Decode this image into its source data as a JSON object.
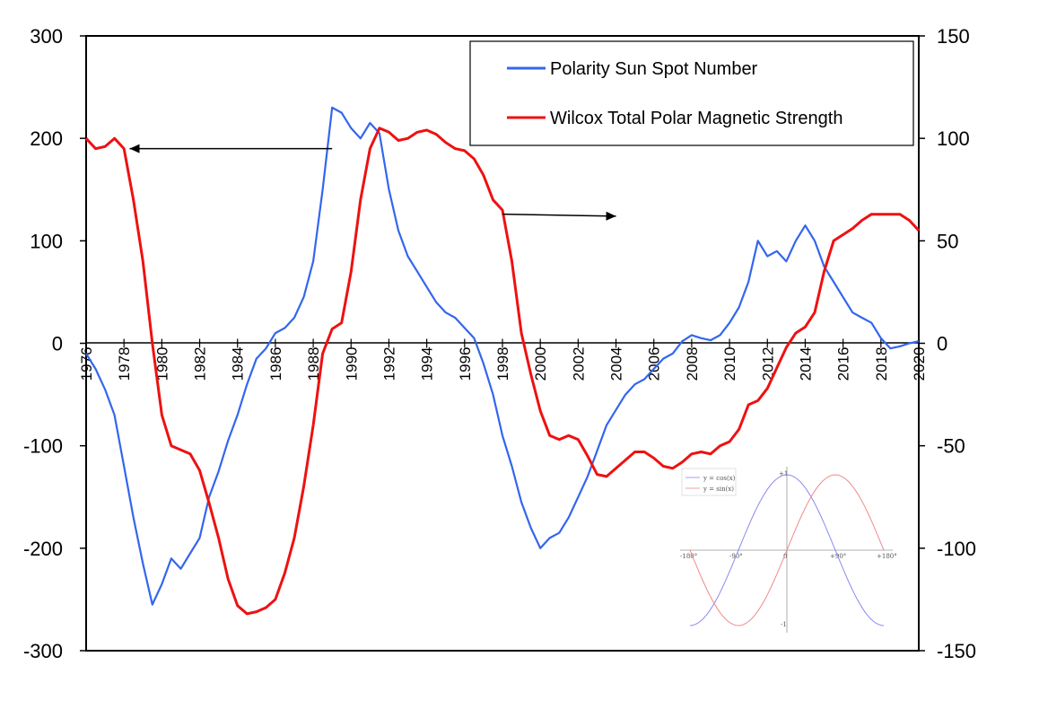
{
  "chart_data": {
    "type": "line",
    "x_range": [
      1976,
      2020
    ],
    "y_left_range": [
      -300,
      300
    ],
    "y_right_range": [
      -150,
      150
    ],
    "y_left_ticks": [
      300,
      200,
      100,
      0,
      -100,
      -200,
      -300
    ],
    "y_right_ticks": [
      150,
      100,
      50,
      0,
      -50,
      -100,
      -150
    ],
    "x_ticks": [
      "1976",
      "1978",
      "1980",
      "1982",
      "1984",
      "1986",
      "1988",
      "1990",
      "1992",
      "1994",
      "1996",
      "1998",
      "2000",
      "2002",
      "2004",
      "2006",
      "2008",
      "2010",
      "2012",
      "2014",
      "2016",
      "2018",
      "2020"
    ],
    "grid": false,
    "legend_position": "top-right",
    "series": [
      {
        "name": "Polarity Sun Spot Number",
        "axis": "left",
        "color": "#3366ee",
        "points": [
          [
            1976,
            -10
          ],
          [
            1976.5,
            -25
          ],
          [
            1977,
            -45
          ],
          [
            1977.5,
            -70
          ],
          [
            1978,
            -120
          ],
          [
            1978.5,
            -170
          ],
          [
            1979,
            -215
          ],
          [
            1979.5,
            -255
          ],
          [
            1980,
            -235
          ],
          [
            1980.5,
            -210
          ],
          [
            1981,
            -220
          ],
          [
            1981.5,
            -205
          ],
          [
            1982,
            -190
          ],
          [
            1982.5,
            -150
          ],
          [
            1983,
            -125
          ],
          [
            1983.5,
            -95
          ],
          [
            1984,
            -70
          ],
          [
            1984.5,
            -40
          ],
          [
            1985,
            -15
          ],
          [
            1985.5,
            -5
          ],
          [
            1986,
            10
          ],
          [
            1986.5,
            15
          ],
          [
            1987,
            25
          ],
          [
            1987.5,
            45
          ],
          [
            1988,
            80
          ],
          [
            1988.5,
            150
          ],
          [
            1989,
            230
          ],
          [
            1989.5,
            225
          ],
          [
            1990,
            210
          ],
          [
            1990.5,
            200
          ],
          [
            1991,
            215
          ],
          [
            1991.5,
            205
          ],
          [
            1992,
            150
          ],
          [
            1992.5,
            110
          ],
          [
            1993,
            85
          ],
          [
            1993.5,
            70
          ],
          [
            1994,
            55
          ],
          [
            1994.5,
            40
          ],
          [
            1995,
            30
          ],
          [
            1995.5,
            25
          ],
          [
            1996,
            15
          ],
          [
            1996.5,
            5
          ],
          [
            1997,
            -20
          ],
          [
            1997.5,
            -50
          ],
          [
            1998,
            -90
          ],
          [
            1998.5,
            -120
          ],
          [
            1999,
            -155
          ],
          [
            1999.5,
            -180
          ],
          [
            2000,
            -200
          ],
          [
            2000.5,
            -190
          ],
          [
            2001,
            -185
          ],
          [
            2001.5,
            -170
          ],
          [
            2002,
            -150
          ],
          [
            2002.5,
            -130
          ],
          [
            2003,
            -105
          ],
          [
            2003.5,
            -80
          ],
          [
            2004,
            -65
          ],
          [
            2004.5,
            -50
          ],
          [
            2005,
            -40
          ],
          [
            2005.5,
            -35
          ],
          [
            2006,
            -25
          ],
          [
            2006.5,
            -15
          ],
          [
            2007,
            -10
          ],
          [
            2007.5,
            2
          ],
          [
            2008,
            8
          ],
          [
            2008.5,
            5
          ],
          [
            2009,
            3
          ],
          [
            2009.5,
            8
          ],
          [
            2010,
            20
          ],
          [
            2010.5,
            35
          ],
          [
            2011,
            60
          ],
          [
            2011.5,
            100
          ],
          [
            2012,
            85
          ],
          [
            2012.5,
            90
          ],
          [
            2013,
            80
          ],
          [
            2013.5,
            100
          ],
          [
            2014,
            115
          ],
          [
            2014.5,
            100
          ],
          [
            2015,
            75
          ],
          [
            2015.5,
            60
          ],
          [
            2016,
            45
          ],
          [
            2016.5,
            30
          ],
          [
            2017,
            25
          ],
          [
            2017.5,
            20
          ],
          [
            2018,
            5
          ],
          [
            2018.5,
            -5
          ],
          [
            2019,
            -3
          ],
          [
            2019.5,
            0
          ],
          [
            2020,
            2
          ]
        ]
      },
      {
        "name": "Wilcox Total Polar Magnetic Strength",
        "axis": "right",
        "color": "#ee1111",
        "points": [
          [
            1976,
            100
          ],
          [
            1976.5,
            95
          ],
          [
            1977,
            96
          ],
          [
            1977.5,
            100
          ],
          [
            1978,
            95
          ],
          [
            1978.5,
            70
          ],
          [
            1979,
            40
          ],
          [
            1979.5,
            0
          ],
          [
            1980,
            -35
          ],
          [
            1980.5,
            -50
          ],
          [
            1981,
            -52
          ],
          [
            1981.5,
            -54
          ],
          [
            1982,
            -62
          ],
          [
            1982.5,
            -78
          ],
          [
            1983,
            -95
          ],
          [
            1983.5,
            -115
          ],
          [
            1984,
            -128
          ],
          [
            1984.5,
            -132
          ],
          [
            1985,
            -131
          ],
          [
            1985.5,
            -129
          ],
          [
            1986,
            -125
          ],
          [
            1986.5,
            -112
          ],
          [
            1987,
            -95
          ],
          [
            1987.5,
            -70
          ],
          [
            1988,
            -40
          ],
          [
            1988.5,
            -5
          ],
          [
            1989,
            7
          ],
          [
            1989.5,
            10
          ],
          [
            1990,
            35
          ],
          [
            1990.5,
            70
          ],
          [
            1991,
            95
          ],
          [
            1991.5,
            105
          ],
          [
            1992,
            103
          ],
          [
            1992.5,
            99
          ],
          [
            1993,
            100
          ],
          [
            1993.5,
            103
          ],
          [
            1994,
            104
          ],
          [
            1994.5,
            102
          ],
          [
            1995,
            98
          ],
          [
            1995.5,
            95
          ],
          [
            1996,
            94
          ],
          [
            1996.5,
            90
          ],
          [
            1997,
            82
          ],
          [
            1997.5,
            70
          ],
          [
            1998,
            65
          ],
          [
            1998.5,
            40
          ],
          [
            1999,
            5
          ],
          [
            1999.5,
            -15
          ],
          [
            2000,
            -33
          ],
          [
            2000.5,
            -45
          ],
          [
            2001,
            -47
          ],
          [
            2001.5,
            -45
          ],
          [
            2002,
            -47
          ],
          [
            2002.5,
            -55
          ],
          [
            2003,
            -64
          ],
          [
            2003.5,
            -65
          ],
          [
            2004,
            -61
          ],
          [
            2004.5,
            -57
          ],
          [
            2005,
            -53
          ],
          [
            2005.5,
            -53
          ],
          [
            2006,
            -56
          ],
          [
            2006.5,
            -60
          ],
          [
            2007,
            -61
          ],
          [
            2007.5,
            -58
          ],
          [
            2008,
            -54
          ],
          [
            2008.5,
            -53
          ],
          [
            2009,
            -54
          ],
          [
            2009.5,
            -50
          ],
          [
            2010,
            -48
          ],
          [
            2010.5,
            -42
          ],
          [
            2011,
            -30
          ],
          [
            2011.5,
            -28
          ],
          [
            2012,
            -22
          ],
          [
            2012.5,
            -12
          ],
          [
            2013,
            -2
          ],
          [
            2013.5,
            5
          ],
          [
            2014,
            8
          ],
          [
            2014.5,
            15
          ],
          [
            2015,
            35
          ],
          [
            2015.5,
            50
          ],
          [
            2016,
            53
          ],
          [
            2016.5,
            56
          ],
          [
            2017,
            60
          ],
          [
            2017.5,
            63
          ],
          [
            2018,
            63
          ],
          [
            2018.5,
            63
          ],
          [
            2019,
            63
          ],
          [
            2019.5,
            60
          ],
          [
            2020,
            55
          ]
        ]
      }
    ],
    "annotations": [
      {
        "type": "arrow",
        "from": [
          1989.0,
          190
        ],
        "to": [
          1978.3,
          190
        ],
        "axis": "left",
        "points_to": "left-axis"
      },
      {
        "type": "arrow",
        "from": [
          1998.0,
          63
        ],
        "to": [
          2004.0,
          62
        ],
        "axis": "right",
        "points_to": "right-axis"
      }
    ],
    "inset": {
      "legend": [
        "y = cos(x)",
        "y = sin(x)"
      ],
      "x_ticks": [
        "-180°",
        "-90°",
        "0",
        "+90°",
        "+180°"
      ],
      "y_ticks": [
        "+1",
        "-1"
      ],
      "colors": [
        "#8a8af0",
        "#f08a8a"
      ]
    }
  }
}
